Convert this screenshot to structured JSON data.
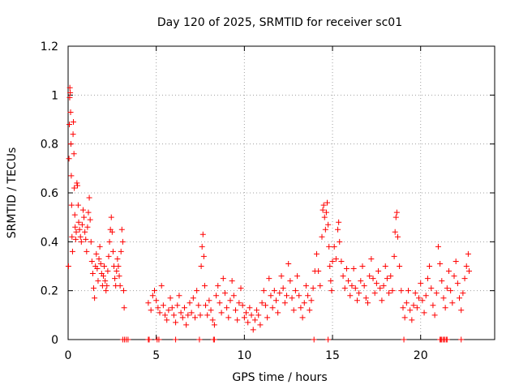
{
  "chart_data": {
    "type": "scatter",
    "title": "Day 120 of 2025, SRMTID for receiver sc01",
    "xlabel": "GPS time / hours",
    "ylabel": "SRMTID / TECUs",
    "xlim": [
      0,
      24.2
    ],
    "ylim": [
      0,
      1.2
    ],
    "grid": true,
    "marker": "+",
    "x_ticks": [
      {
        "value": 0,
        "label": "0"
      },
      {
        "value": 5,
        "label": "5"
      },
      {
        "value": 10,
        "label": "10"
      },
      {
        "value": 15,
        "label": "15"
      },
      {
        "value": 20,
        "label": "20"
      }
    ],
    "y_ticks": [
      {
        "value": 0,
        "label": "0"
      },
      {
        "value": 0.2,
        "label": "0.2"
      },
      {
        "value": 0.4,
        "label": "0.4"
      },
      {
        "value": 0.6,
        "label": "0.6"
      },
      {
        "value": 0.8,
        "label": "0.8"
      },
      {
        "value": 1.0,
        "label": "1"
      },
      {
        "value": 1.2,
        "label": "1.2"
      }
    ],
    "series": [
      {
        "name": "SRMTID",
        "color": "#ff0000",
        "points": [
          [
            0.02,
            0.3
          ],
          [
            0.05,
            0.74
          ],
          [
            0.07,
            0.88
          ],
          [
            0.09,
            0.99
          ],
          [
            0.1,
            1.03
          ],
          [
            0.12,
            1.01
          ],
          [
            0.14,
            0.93
          ],
          [
            0.16,
            0.8
          ],
          [
            0.18,
            0.67
          ],
          [
            0.2,
            0.55
          ],
          [
            0.22,
            0.42
          ],
          [
            0.25,
            0.36
          ],
          [
            0.28,
            0.84
          ],
          [
            0.3,
            0.89
          ],
          [
            0.33,
            0.76
          ],
          [
            0.35,
            0.62
          ],
          [
            0.38,
            0.51
          ],
          [
            0.4,
            0.46
          ],
          [
            0.43,
            0.41
          ],
          [
            0.46,
            0.44
          ],
          [
            0.5,
            0.64
          ],
          [
            0.53,
            0.63
          ],
          [
            0.57,
            0.55
          ],
          [
            0.6,
            0.48
          ],
          [
            0.65,
            0.45
          ],
          [
            0.7,
            0.42
          ],
          [
            0.75,
            0.4
          ],
          [
            0.8,
            0.47
          ],
          [
            0.85,
            0.53
          ],
          [
            0.9,
            0.5
          ],
          [
            0.95,
            0.44
          ],
          [
            1.0,
            0.41
          ],
          [
            1.05,
            0.36
          ],
          [
            1.1,
            0.46
          ],
          [
            1.15,
            0.52
          ],
          [
            1.2,
            0.58
          ],
          [
            1.25,
            0.49
          ],
          [
            1.3,
            0.4
          ],
          [
            1.35,
            0.32
          ],
          [
            1.4,
            0.27
          ],
          [
            1.45,
            0.21
          ],
          [
            1.5,
            0.17
          ],
          [
            1.55,
            0.3
          ],
          [
            1.6,
            0.35
          ],
          [
            1.65,
            0.29
          ],
          [
            1.7,
            0.24
          ],
          [
            1.75,
            0.33
          ],
          [
            1.8,
            0.38
          ],
          [
            1.85,
            0.31
          ],
          [
            1.9,
            0.27
          ],
          [
            1.95,
            0.22
          ],
          [
            2.0,
            0.26
          ],
          [
            2.05,
            0.3
          ],
          [
            2.1,
            0.24
          ],
          [
            2.15,
            0.2
          ],
          [
            2.2,
            0.22
          ],
          [
            2.25,
            0.28
          ],
          [
            2.3,
            0.34
          ],
          [
            2.35,
            0.4
          ],
          [
            2.4,
            0.45
          ],
          [
            2.45,
            0.5
          ],
          [
            2.5,
            0.44
          ],
          [
            2.55,
            0.36
          ],
          [
            2.6,
            0.3
          ],
          [
            2.65,
            0.25
          ],
          [
            2.7,
            0.22
          ],
          [
            2.75,
            0.28
          ],
          [
            2.8,
            0.33
          ],
          [
            2.85,
            0.3
          ],
          [
            2.9,
            0.26
          ],
          [
            2.95,
            0.22
          ],
          [
            3.0,
            0.36
          ],
          [
            3.05,
            0.45
          ],
          [
            3.1,
            0.4
          ],
          [
            3.15,
            0.2
          ],
          [
            3.18,
            0.13
          ],
          [
            4.55,
            0.15
          ],
          [
            4.7,
            0.12
          ],
          [
            4.8,
            0.18
          ],
          [
            4.9,
            0.2
          ],
          [
            5.0,
            0.16
          ],
          [
            5.1,
            0.13
          ],
          [
            5.2,
            0.11
          ],
          [
            5.3,
            0.22
          ],
          [
            5.4,
            0.14
          ],
          [
            5.5,
            0.1
          ],
          [
            5.6,
            0.08
          ],
          [
            5.7,
            0.12
          ],
          [
            5.8,
            0.17
          ],
          [
            5.9,
            0.13
          ],
          [
            6.0,
            0.1
          ],
          [
            6.1,
            0.07
          ],
          [
            6.2,
            0.14
          ],
          [
            6.3,
            0.18
          ],
          [
            6.4,
            0.11
          ],
          [
            6.5,
            0.09
          ],
          [
            6.6,
            0.13
          ],
          [
            6.7,
            0.06
          ],
          [
            6.8,
            0.1
          ],
          [
            6.9,
            0.15
          ],
          [
            7.0,
            0.11
          ],
          [
            7.1,
            0.17
          ],
          [
            7.2,
            0.09
          ],
          [
            7.3,
            0.2
          ],
          [
            7.4,
            0.14
          ],
          [
            7.5,
            0.1
          ],
          [
            7.55,
            0.3
          ],
          [
            7.6,
            0.38
          ],
          [
            7.65,
            0.43
          ],
          [
            7.7,
            0.34
          ],
          [
            7.75,
            0.22
          ],
          [
            7.8,
            0.14
          ],
          [
            7.9,
            0.1
          ],
          [
            8.0,
            0.16
          ],
          [
            8.1,
            0.12
          ],
          [
            8.2,
            0.08
          ],
          [
            8.3,
            0.06
          ],
          [
            8.4,
            0.18
          ],
          [
            8.5,
            0.22
          ],
          [
            8.6,
            0.15
          ],
          [
            8.7,
            0.11
          ],
          [
            8.8,
            0.25
          ],
          [
            8.9,
            0.19
          ],
          [
            9.0,
            0.13
          ],
          [
            9.1,
            0.09
          ],
          [
            9.2,
            0.16
          ],
          [
            9.3,
            0.24
          ],
          [
            9.4,
            0.18
          ],
          [
            9.5,
            0.12
          ],
          [
            9.6,
            0.08
          ],
          [
            9.7,
            0.15
          ],
          [
            9.8,
            0.21
          ],
          [
            9.9,
            0.14
          ],
          [
            10.0,
            0.09
          ],
          [
            10.1,
            0.11
          ],
          [
            10.2,
            0.07
          ],
          [
            10.3,
            0.13
          ],
          [
            10.4,
            0.1
          ],
          [
            10.5,
            0.04
          ],
          [
            10.6,
            0.08
          ],
          [
            10.7,
            0.12
          ],
          [
            10.8,
            0.1
          ],
          [
            10.9,
            0.06
          ],
          [
            11.0,
            0.15
          ],
          [
            11.1,
            0.2
          ],
          [
            11.2,
            0.14
          ],
          [
            11.3,
            0.09
          ],
          [
            11.4,
            0.25
          ],
          [
            11.5,
            0.18
          ],
          [
            11.6,
            0.13
          ],
          [
            11.7,
            0.2
          ],
          [
            11.8,
            0.16
          ],
          [
            11.9,
            0.11
          ],
          [
            12.0,
            0.19
          ],
          [
            12.1,
            0.26
          ],
          [
            12.2,
            0.21
          ],
          [
            12.3,
            0.15
          ],
          [
            12.4,
            0.18
          ],
          [
            12.5,
            0.31
          ],
          [
            12.6,
            0.24
          ],
          [
            12.7,
            0.17
          ],
          [
            12.8,
            0.12
          ],
          [
            12.9,
            0.2
          ],
          [
            13.0,
            0.26
          ],
          [
            13.1,
            0.18
          ],
          [
            13.2,
            0.13
          ],
          [
            13.3,
            0.09
          ],
          [
            13.4,
            0.15
          ],
          [
            13.5,
            0.22
          ],
          [
            13.6,
            0.18
          ],
          [
            13.7,
            0.12
          ],
          [
            13.8,
            0.16
          ],
          [
            13.9,
            0.21
          ],
          [
            14.0,
            0.28
          ],
          [
            14.1,
            0.35
          ],
          [
            14.2,
            0.28
          ],
          [
            14.3,
            0.22
          ],
          [
            14.4,
            0.42
          ],
          [
            14.45,
            0.53
          ],
          [
            14.5,
            0.55
          ],
          [
            14.55,
            0.5
          ],
          [
            14.6,
            0.45
          ],
          [
            14.65,
            0.52
          ],
          [
            14.7,
            0.56
          ],
          [
            14.75,
            0.47
          ],
          [
            14.8,
            0.38
          ],
          [
            14.85,
            0.3
          ],
          [
            14.9,
            0.24
          ],
          [
            14.95,
            0.2
          ],
          [
            15.0,
            0.32
          ],
          [
            15.1,
            0.38
          ],
          [
            15.2,
            0.33
          ],
          [
            15.3,
            0.45
          ],
          [
            15.35,
            0.48
          ],
          [
            15.4,
            0.4
          ],
          [
            15.5,
            0.32
          ],
          [
            15.6,
            0.26
          ],
          [
            15.7,
            0.21
          ],
          [
            15.8,
            0.29
          ],
          [
            15.9,
            0.24
          ],
          [
            16.0,
            0.18
          ],
          [
            16.1,
            0.22
          ],
          [
            16.2,
            0.29
          ],
          [
            16.3,
            0.21
          ],
          [
            16.4,
            0.16
          ],
          [
            16.5,
            0.19
          ],
          [
            16.6,
            0.24
          ],
          [
            16.7,
            0.3
          ],
          [
            16.8,
            0.22
          ],
          [
            16.9,
            0.17
          ],
          [
            17.0,
            0.15
          ],
          [
            17.1,
            0.26
          ],
          [
            17.2,
            0.33
          ],
          [
            17.3,
            0.25
          ],
          [
            17.4,
            0.19
          ],
          [
            17.5,
            0.23
          ],
          [
            17.6,
            0.28
          ],
          [
            17.7,
            0.21
          ],
          [
            17.8,
            0.16
          ],
          [
            17.9,
            0.22
          ],
          [
            18.0,
            0.3
          ],
          [
            18.1,
            0.25
          ],
          [
            18.2,
            0.19
          ],
          [
            18.3,
            0.26
          ],
          [
            18.4,
            0.2
          ],
          [
            18.5,
            0.34
          ],
          [
            18.55,
            0.44
          ],
          [
            18.6,
            0.5
          ],
          [
            18.65,
            0.52
          ],
          [
            18.7,
            0.42
          ],
          [
            18.8,
            0.3
          ],
          [
            18.9,
            0.2
          ],
          [
            19.0,
            0.13
          ],
          [
            19.1,
            0.09
          ],
          [
            19.2,
            0.15
          ],
          [
            19.3,
            0.2
          ],
          [
            19.4,
            0.12
          ],
          [
            19.5,
            0.08
          ],
          [
            19.6,
            0.14
          ],
          [
            19.7,
            0.19
          ],
          [
            19.8,
            0.13
          ],
          [
            19.9,
            0.17
          ],
          [
            20.0,
            0.23
          ],
          [
            20.1,
            0.16
          ],
          [
            20.2,
            0.11
          ],
          [
            20.3,
            0.18
          ],
          [
            20.4,
            0.25
          ],
          [
            20.5,
            0.3
          ],
          [
            20.6,
            0.21
          ],
          [
            20.7,
            0.14
          ],
          [
            20.8,
            0.1
          ],
          [
            20.9,
            0.19
          ],
          [
            21.0,
            0.38
          ],
          [
            21.1,
            0.31
          ],
          [
            21.2,
            0.24
          ],
          [
            21.3,
            0.17
          ],
          [
            21.4,
            0.13
          ],
          [
            21.5,
            0.21
          ],
          [
            21.6,
            0.28
          ],
          [
            21.7,
            0.2
          ],
          [
            21.8,
            0.15
          ],
          [
            21.9,
            0.26
          ],
          [
            22.0,
            0.32
          ],
          [
            22.1,
            0.23
          ],
          [
            22.2,
            0.17
          ],
          [
            22.3,
            0.12
          ],
          [
            22.4,
            0.19
          ],
          [
            22.5,
            0.25
          ],
          [
            22.6,
            0.3
          ],
          [
            22.7,
            0.35
          ],
          [
            22.75,
            0.28
          ]
        ],
        "baseline_points_x": [
          3.1,
          3.2,
          3.3,
          3.4,
          4.55,
          4.6,
          5.05,
          5.15,
          6.1,
          7.45,
          8.25,
          8.3,
          13.95,
          14.75,
          19.05,
          21.1,
          21.15,
          21.2,
          21.3,
          21.35,
          21.45,
          21.5,
          22.3
        ]
      }
    ]
  }
}
